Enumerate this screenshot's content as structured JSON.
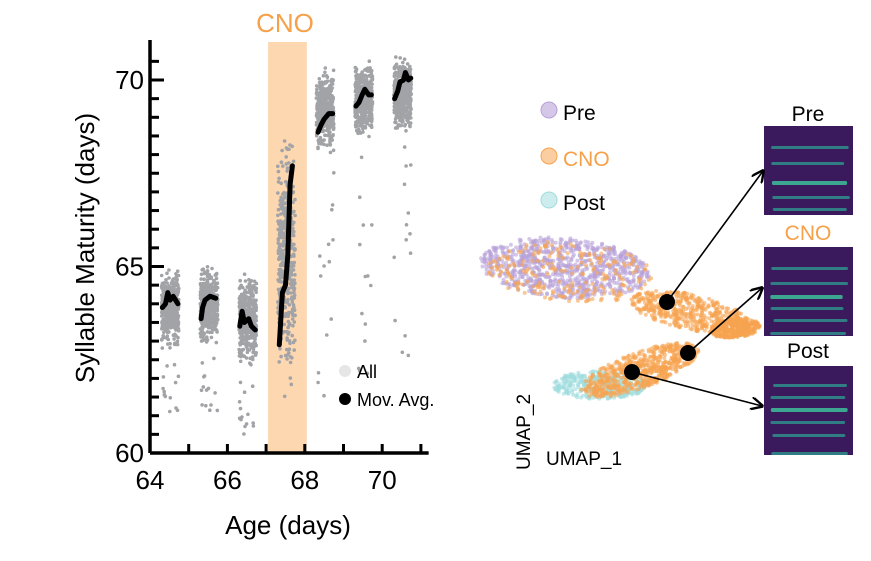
{
  "colors": {
    "all_points": "#a2a3a7",
    "moving_average": "#000000",
    "cno_band": "#fcd7b0",
    "cno_text": "#f7a04a",
    "pre": "#b8a2d8",
    "cno": "#f7a450",
    "post": "#9fdcdd",
    "spectrogram_bg": "#3a1a5c",
    "spectrogram_line": "#2f8f8a"
  },
  "chart_data": [
    {
      "type": "scatter",
      "title": "",
      "xlabel": "Age (days)",
      "ylabel": "Syllable Maturity (days)",
      "xlim": [
        64,
        71.2
      ],
      "ylim": [
        60,
        70.9
      ],
      "xticks": [
        "64",
        "66",
        "68",
        "70"
      ],
      "xtick_values": [
        64,
        66,
        68,
        70
      ],
      "yticks": [
        "60",
        "65",
        "70"
      ],
      "ytick_values": [
        60,
        65,
        70
      ],
      "grid": false,
      "annotation": {
        "label": "CNO",
        "x_range": [
          67,
          68
        ]
      },
      "legend": {
        "placement": "bottom-right",
        "entries": [
          "All",
          "Mov. Avg."
        ]
      },
      "days": [
        {
          "x_range": [
            64.3,
            64.75
          ],
          "y_core": [
            62.6,
            65.1
          ],
          "mov_avg": [
            [
              64.32,
              63.9
            ],
            [
              64.4,
              64.0
            ],
            [
              64.46,
              64.3
            ],
            [
              64.52,
              64.1
            ],
            [
              64.6,
              64.2
            ],
            [
              64.72,
              64.0
            ]
          ]
        },
        {
          "x_range": [
            65.3,
            65.75
          ],
          "y_core": [
            62.6,
            65.3
          ],
          "mov_avg": [
            [
              65.32,
              63.6
            ],
            [
              65.36,
              63.9
            ],
            [
              65.42,
              64.1
            ],
            [
              65.55,
              64.2
            ],
            [
              65.7,
              64.15
            ]
          ]
        },
        {
          "x_range": [
            66.3,
            66.75
          ],
          "y_core": [
            61.9,
            65.3
          ],
          "mov_avg": [
            [
              66.32,
              63.4
            ],
            [
              66.38,
              63.8
            ],
            [
              66.44,
              63.5
            ],
            [
              66.55,
              63.6
            ],
            [
              66.62,
              63.4
            ],
            [
              66.72,
              63.3
            ]
          ]
        },
        {
          "x_range": [
            67.3,
            67.75
          ],
          "y_core": [
            60.8,
            69.6
          ],
          "mov_avg": [
            [
              67.34,
              62.9
            ],
            [
              67.42,
              64.3
            ],
            [
              67.5,
              64.5
            ],
            [
              67.56,
              65.3
            ],
            [
              67.62,
              67.2
            ],
            [
              67.68,
              67.7
            ]
          ]
        },
        {
          "x_range": [
            68.3,
            68.75
          ],
          "y_core": [
            67.8,
            70.6
          ],
          "mov_avg": [
            [
              68.34,
              68.6
            ],
            [
              68.42,
              68.8
            ],
            [
              68.5,
              68.95
            ],
            [
              68.62,
              69.1
            ],
            [
              68.72,
              69.1
            ]
          ]
        },
        {
          "x_range": [
            69.3,
            69.75
          ],
          "y_core": [
            68.2,
            70.8
          ],
          "mov_avg": [
            [
              69.32,
              69.3
            ],
            [
              69.4,
              69.4
            ],
            [
              69.48,
              69.6
            ],
            [
              69.55,
              69.75
            ],
            [
              69.65,
              69.6
            ],
            [
              69.72,
              69.6
            ]
          ]
        },
        {
          "x_range": [
            70.3,
            70.75
          ],
          "y_core": [
            68.3,
            70.9
          ],
          "mov_avg": [
            [
              70.32,
              69.5
            ],
            [
              70.4,
              69.7
            ],
            [
              70.46,
              69.95
            ],
            [
              70.55,
              70.0
            ],
            [
              70.6,
              70.2
            ],
            [
              70.68,
              70.0
            ],
            [
              70.74,
              70.05
            ]
          ]
        }
      ]
    },
    {
      "type": "scatter",
      "title": "",
      "xlabel": "UMAP_1",
      "ylabel": "UMAP_2",
      "grid": false,
      "legend": {
        "placement": "top-left",
        "entries": [
          "Pre",
          "CNO",
          "Post"
        ]
      },
      "series": [
        {
          "name": "Pre"
        },
        {
          "name": "CNO"
        },
        {
          "name": "Post"
        }
      ],
      "examples": [
        {
          "label": "Pre",
          "color_key": "text"
        },
        {
          "label": "CNO",
          "color_key": "cno_text"
        },
        {
          "label": "Post",
          "color_key": "text"
        }
      ]
    }
  ]
}
